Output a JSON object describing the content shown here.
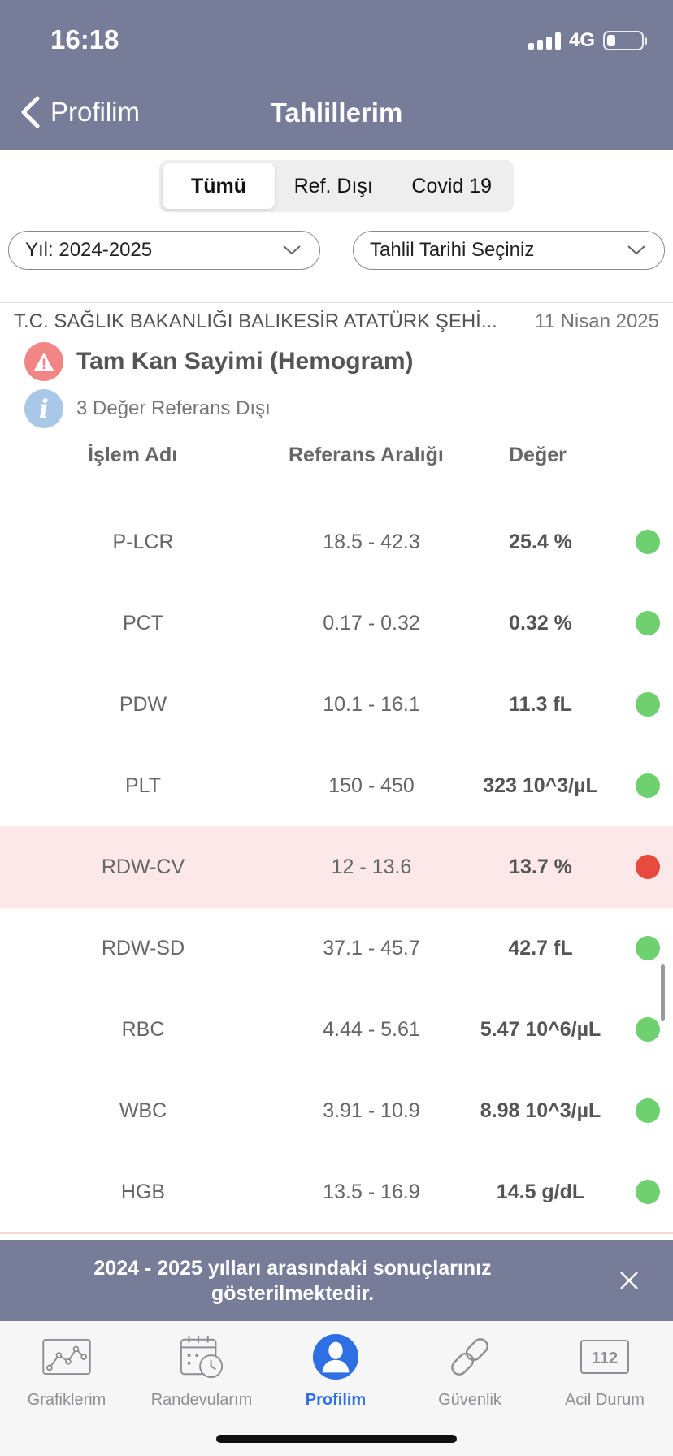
{
  "status_bar": {
    "time": "16:18",
    "network": "4G"
  },
  "nav": {
    "back_label": "Profilim",
    "title": "Tahlillerim"
  },
  "segments": [
    {
      "label": "Tümü",
      "active": true
    },
    {
      "label": "Ref. Dışı",
      "active": false
    },
    {
      "label": "Covid 19",
      "active": false
    }
  ],
  "filters": {
    "year": "Yıl: 2024-2025",
    "date": "Tahlil Tarihi Seçiniz"
  },
  "report": {
    "hospital": "T.C. SAĞLIK BAKANLIĞI BALIKESİR ATATÜRK ŞEHİ...",
    "date": "11 Nisan 2025",
    "test_name": "Tam Kan Sayimi (Hemogram)",
    "out_of_range_note": "3 Değer Referans Dışı"
  },
  "columns": {
    "name": "İşlem Adı",
    "range": "Referans Aralığı",
    "value": "Değer"
  },
  "results": [
    {
      "name": "P-LCR",
      "range": "18.5 - 42.3",
      "value": "25.4 %",
      "status": "ok"
    },
    {
      "name": "PCT",
      "range": "0.17 - 0.32",
      "value": "0.32 %",
      "status": "ok"
    },
    {
      "name": "PDW",
      "range": "10.1 - 16.1",
      "value": "11.3 fL",
      "status": "ok"
    },
    {
      "name": "PLT",
      "range": "150 - 450",
      "value": "323 10^3/µL",
      "status": "ok"
    },
    {
      "name": "RDW-CV",
      "range": "12 - 13.6",
      "value": "13.7 %",
      "status": "out"
    },
    {
      "name": "RDW-SD",
      "range": "37.1 - 45.7",
      "value": "42.7 fL",
      "status": "ok"
    },
    {
      "name": "RBC",
      "range": "4.44 - 5.61",
      "value": "5.47 10^6/µL",
      "status": "ok"
    },
    {
      "name": "WBC",
      "range": "3.91 - 10.9",
      "value": "8.98 10^3/µL",
      "status": "ok"
    },
    {
      "name": "HGB",
      "range": "13.5 - 16.9",
      "value": "14.5 g/dL",
      "status": "ok"
    }
  ],
  "banner": {
    "text": "2024 - 2025 yılları arasındaki sonuçlarınız gösterilmektedir."
  },
  "tabs": [
    {
      "label": "Grafiklerim",
      "icon": "chart-icon",
      "active": false
    },
    {
      "label": "Randevularım",
      "icon": "calendar-icon",
      "active": false
    },
    {
      "label": "Profilim",
      "icon": "profile-icon",
      "active": true
    },
    {
      "label": "Güvenlik",
      "icon": "link-icon",
      "active": false
    },
    {
      "label": "Acil Durum",
      "icon": "emergency-112-icon",
      "badge": "112",
      "active": false
    }
  ],
  "colors": {
    "header": "#777c98",
    "accent": "#2f6fe4",
    "ok": "#6fd070",
    "bad": "#e84a3d",
    "out_row": "#fce8e8"
  }
}
